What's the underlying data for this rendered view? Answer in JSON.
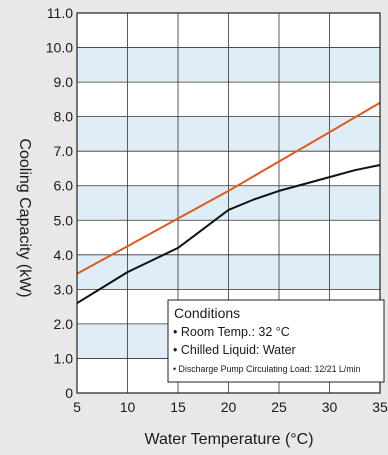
{
  "chart_data": {
    "type": "line",
    "xlabel": "Water Temperature (°C)",
    "ylabel": "Cooling Capacity (kW)",
    "xlim": [
      5,
      35
    ],
    "ylim": [
      0,
      11.0
    ],
    "x_ticks": [
      "5",
      "10",
      "15",
      "20",
      "25",
      "30",
      "35"
    ],
    "y_ticks": [
      "0",
      "1.0",
      "2.0",
      "3.0",
      "4.0",
      "5.0",
      "6.0",
      "7.0",
      "8.0",
      "9.0",
      "10.0",
      "11.0"
    ],
    "grid": true,
    "series": [
      {
        "color": "#e05a1e",
        "x": [
          5,
          10,
          15,
          20,
          25,
          30,
          35
        ],
        "y": [
          3.45,
          4.25,
          5.05,
          5.85,
          6.7,
          7.55,
          8.4
        ]
      },
      {
        "color": "#111111",
        "x": [
          5,
          7.5,
          10,
          12.5,
          15,
          17.5,
          20,
          22.5,
          25,
          27.5,
          30,
          32.5,
          35
        ],
        "y": [
          2.6,
          3.05,
          3.5,
          3.85,
          4.2,
          4.75,
          5.3,
          5.6,
          5.85,
          6.05,
          6.25,
          6.45,
          6.6
        ]
      }
    ],
    "annotation": {
      "title": "Conditions",
      "lines": [
        "• Room Temp.: 32 °C",
        "• Chilled Liquid: Water",
        "• Discharge Pump Circulating Load: 12/21 L/min"
      ]
    },
    "band_fill": "#dfeef6",
    "plot_bg": "#ffffff"
  }
}
